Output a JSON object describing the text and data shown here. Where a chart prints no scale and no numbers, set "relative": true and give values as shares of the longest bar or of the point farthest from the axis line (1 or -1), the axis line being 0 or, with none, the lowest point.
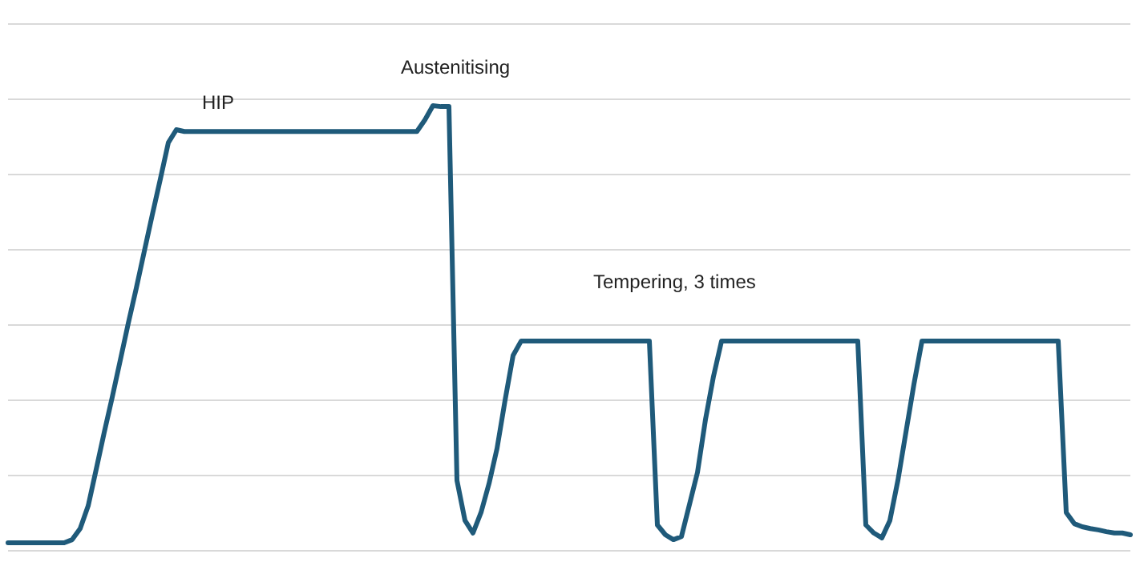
{
  "chart_data": {
    "type": "line",
    "relative": true,
    "grid": "y",
    "annotations": [
      "HIP",
      "Austenitising",
      "Tempering, 3 times"
    ],
    "categories": [
      null,
      null,
      null,
      null,
      null,
      null,
      null,
      null,
      null,
      null,
      null,
      null,
      null,
      null,
      null,
      null,
      null,
      null,
      null,
      null,
      null,
      null,
      null,
      null,
      null,
      null,
      null,
      null,
      null,
      null,
      null,
      null,
      null,
      null,
      null,
      null,
      null,
      null,
      null,
      null,
      null,
      null,
      null,
      null,
      null,
      null,
      null,
      null,
      null,
      null,
      null,
      null,
      null,
      null,
      null,
      null,
      null,
      null,
      null,
      null,
      null,
      null,
      null,
      null,
      null,
      null,
      null,
      null,
      null,
      null,
      null,
      null,
      null,
      null,
      null,
      null,
      null,
      null,
      null,
      null,
      null,
      null,
      null,
      null,
      null,
      null,
      null,
      null,
      null,
      null,
      null,
      null,
      null,
      null,
      null,
      null,
      null,
      null,
      null,
      null,
      null,
      null,
      null,
      null,
      null,
      null,
      null,
      null,
      null,
      null,
      null,
      null,
      null,
      null,
      null,
      null,
      null,
      null,
      null,
      null,
      null,
      null,
      null,
      null,
      null,
      null,
      null,
      null,
      null,
      null,
      null,
      null,
      null,
      null,
      null,
      null,
      null,
      null,
      null,
      null,
      null
    ],
    "series": [
      {
        "color": "#1f5a7a",
        "values": [
          0.018,
          0.018,
          0.018,
          0.018,
          0.018,
          0.018,
          0.018,
          0.018,
          0.025,
          0.05,
          0.101,
          0.183,
          0.266,
          0.345,
          0.428,
          0.511,
          0.59,
          0.673,
          0.755,
          0.835,
          0.917,
          0.946,
          0.942,
          0.942,
          0.942,
          0.942,
          0.942,
          0.942,
          0.942,
          0.942,
          0.942,
          0.942,
          0.942,
          0.942,
          0.942,
          0.942,
          0.942,
          0.942,
          0.942,
          0.942,
          0.942,
          0.942,
          0.942,
          0.942,
          0.942,
          0.942,
          0.942,
          0.942,
          0.942,
          0.942,
          0.942,
          0.942,
          0.968,
          1.0,
          0.998,
          0.998,
          0.158,
          0.068,
          0.04,
          0.086,
          0.151,
          0.23,
          0.338,
          0.439,
          0.471,
          0.471,
          0.471,
          0.471,
          0.471,
          0.471,
          0.471,
          0.471,
          0.471,
          0.471,
          0.471,
          0.471,
          0.471,
          0.471,
          0.471,
          0.471,
          0.471,
          0.058,
          0.036,
          0.025,
          0.032,
          0.104,
          0.176,
          0.295,
          0.392,
          0.471,
          0.471,
          0.471,
          0.471,
          0.471,
          0.471,
          0.471,
          0.471,
          0.471,
          0.471,
          0.471,
          0.471,
          0.471,
          0.471,
          0.471,
          0.471,
          0.471,
          0.471,
          0.058,
          0.04,
          0.029,
          0.068,
          0.158,
          0.266,
          0.374,
          0.471,
          0.471,
          0.471,
          0.471,
          0.471,
          0.471,
          0.471,
          0.471,
          0.471,
          0.471,
          0.471,
          0.471,
          0.471,
          0.471,
          0.471,
          0.471,
          0.471,
          0.471,
          0.086,
          0.061,
          0.054,
          0.05,
          0.047,
          0.043,
          0.04,
          0.04,
          0.036
        ]
      }
    ]
  }
}
